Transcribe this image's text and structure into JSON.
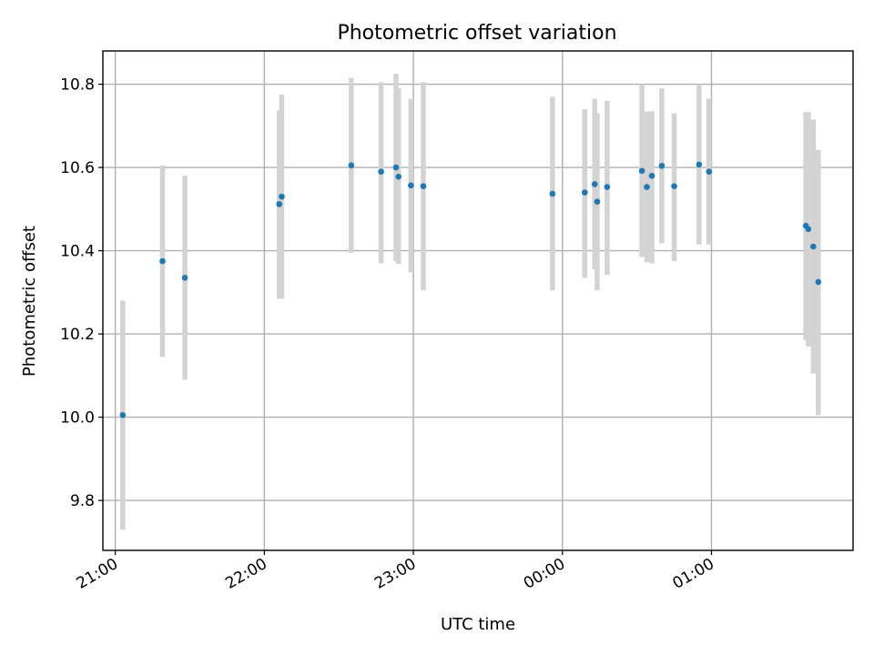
{
  "chart_data": {
    "type": "scatter",
    "title": "Photometric offset variation",
    "xlabel": "UTC time",
    "ylabel": "Photometric offset",
    "x_tick_labels": [
      "21:00",
      "22:00",
      "23:00",
      "00:00",
      "01:00"
    ],
    "y_tick_labels": [
      "9.8",
      "10.0",
      "10.2",
      "10.4",
      "10.6",
      "10.8"
    ],
    "x_ticks_time": [
      "21:00",
      "22:00",
      "23:00",
      "00:00",
      "01:00"
    ],
    "y_ticks": [
      9.8,
      10.0,
      10.2,
      10.4,
      10.6,
      10.8
    ],
    "xlim": [
      "20:55",
      "01:57"
    ],
    "ylim": [
      9.68,
      10.88
    ],
    "grid": true,
    "colors": {
      "point": "#1f77b4",
      "errorbar": "#d3d3d3",
      "grid": "#b0b0b0"
    },
    "points": [
      {
        "time": "21:03",
        "y": 10.005,
        "low": 9.73,
        "high": 10.28
      },
      {
        "time": "21:19",
        "y": 10.375,
        "low": 10.145,
        "high": 10.605
      },
      {
        "time": "21:28",
        "y": 10.335,
        "low": 10.09,
        "high": 10.58
      },
      {
        "time": "22:06",
        "y": 10.512,
        "low": 10.285,
        "high": 10.737
      },
      {
        "time": "22:07",
        "y": 10.53,
        "low": 10.285,
        "high": 10.775
      },
      {
        "time": "22:35",
        "y": 10.605,
        "low": 10.395,
        "high": 10.815
      },
      {
        "time": "22:47",
        "y": 10.59,
        "low": 10.37,
        "high": 10.805
      },
      {
        "time": "22:53",
        "y": 10.6,
        "low": 10.375,
        "high": 10.825
      },
      {
        "time": "22:54",
        "y": 10.578,
        "low": 10.368,
        "high": 10.79
      },
      {
        "time": "22:59",
        "y": 10.557,
        "low": 10.348,
        "high": 10.765
      },
      {
        "time": "23:04",
        "y": 10.555,
        "low": 10.305,
        "high": 10.805
      },
      {
        "time": "23:56",
        "y": 10.537,
        "low": 10.305,
        "high": 10.77
      },
      {
        "time": "00:09",
        "y": 10.54,
        "low": 10.335,
        "high": 10.74
      },
      {
        "time": "00:13",
        "y": 10.56,
        "low": 10.355,
        "high": 10.765
      },
      {
        "time": "00:14",
        "y": 10.518,
        "low": 10.305,
        "high": 10.73
      },
      {
        "time": "00:18",
        "y": 10.553,
        "low": 10.342,
        "high": 10.76
      },
      {
        "time": "00:32",
        "y": 10.592,
        "low": 10.385,
        "high": 10.8
      },
      {
        "time": "00:34",
        "y": 10.553,
        "low": 10.372,
        "high": 10.734
      },
      {
        "time": "00:36",
        "y": 10.58,
        "low": 10.37,
        "high": 10.735
      },
      {
        "time": "00:40",
        "y": 10.604,
        "low": 10.418,
        "high": 10.79
      },
      {
        "time": "00:45",
        "y": 10.555,
        "low": 10.375,
        "high": 10.73
      },
      {
        "time": "00:55",
        "y": 10.607,
        "low": 10.415,
        "high": 10.8
      },
      {
        "time": "00:59",
        "y": 10.59,
        "low": 10.415,
        "high": 10.765
      },
      {
        "time": "01:38",
        "y": 10.46,
        "low": 10.185,
        "high": 10.733
      },
      {
        "time": "01:39",
        "y": 10.452,
        "low": 10.17,
        "high": 10.733
      },
      {
        "time": "01:41",
        "y": 10.41,
        "low": 10.105,
        "high": 10.715
      },
      {
        "time": "01:43",
        "y": 10.325,
        "low": 10.005,
        "high": 10.642
      }
    ]
  }
}
